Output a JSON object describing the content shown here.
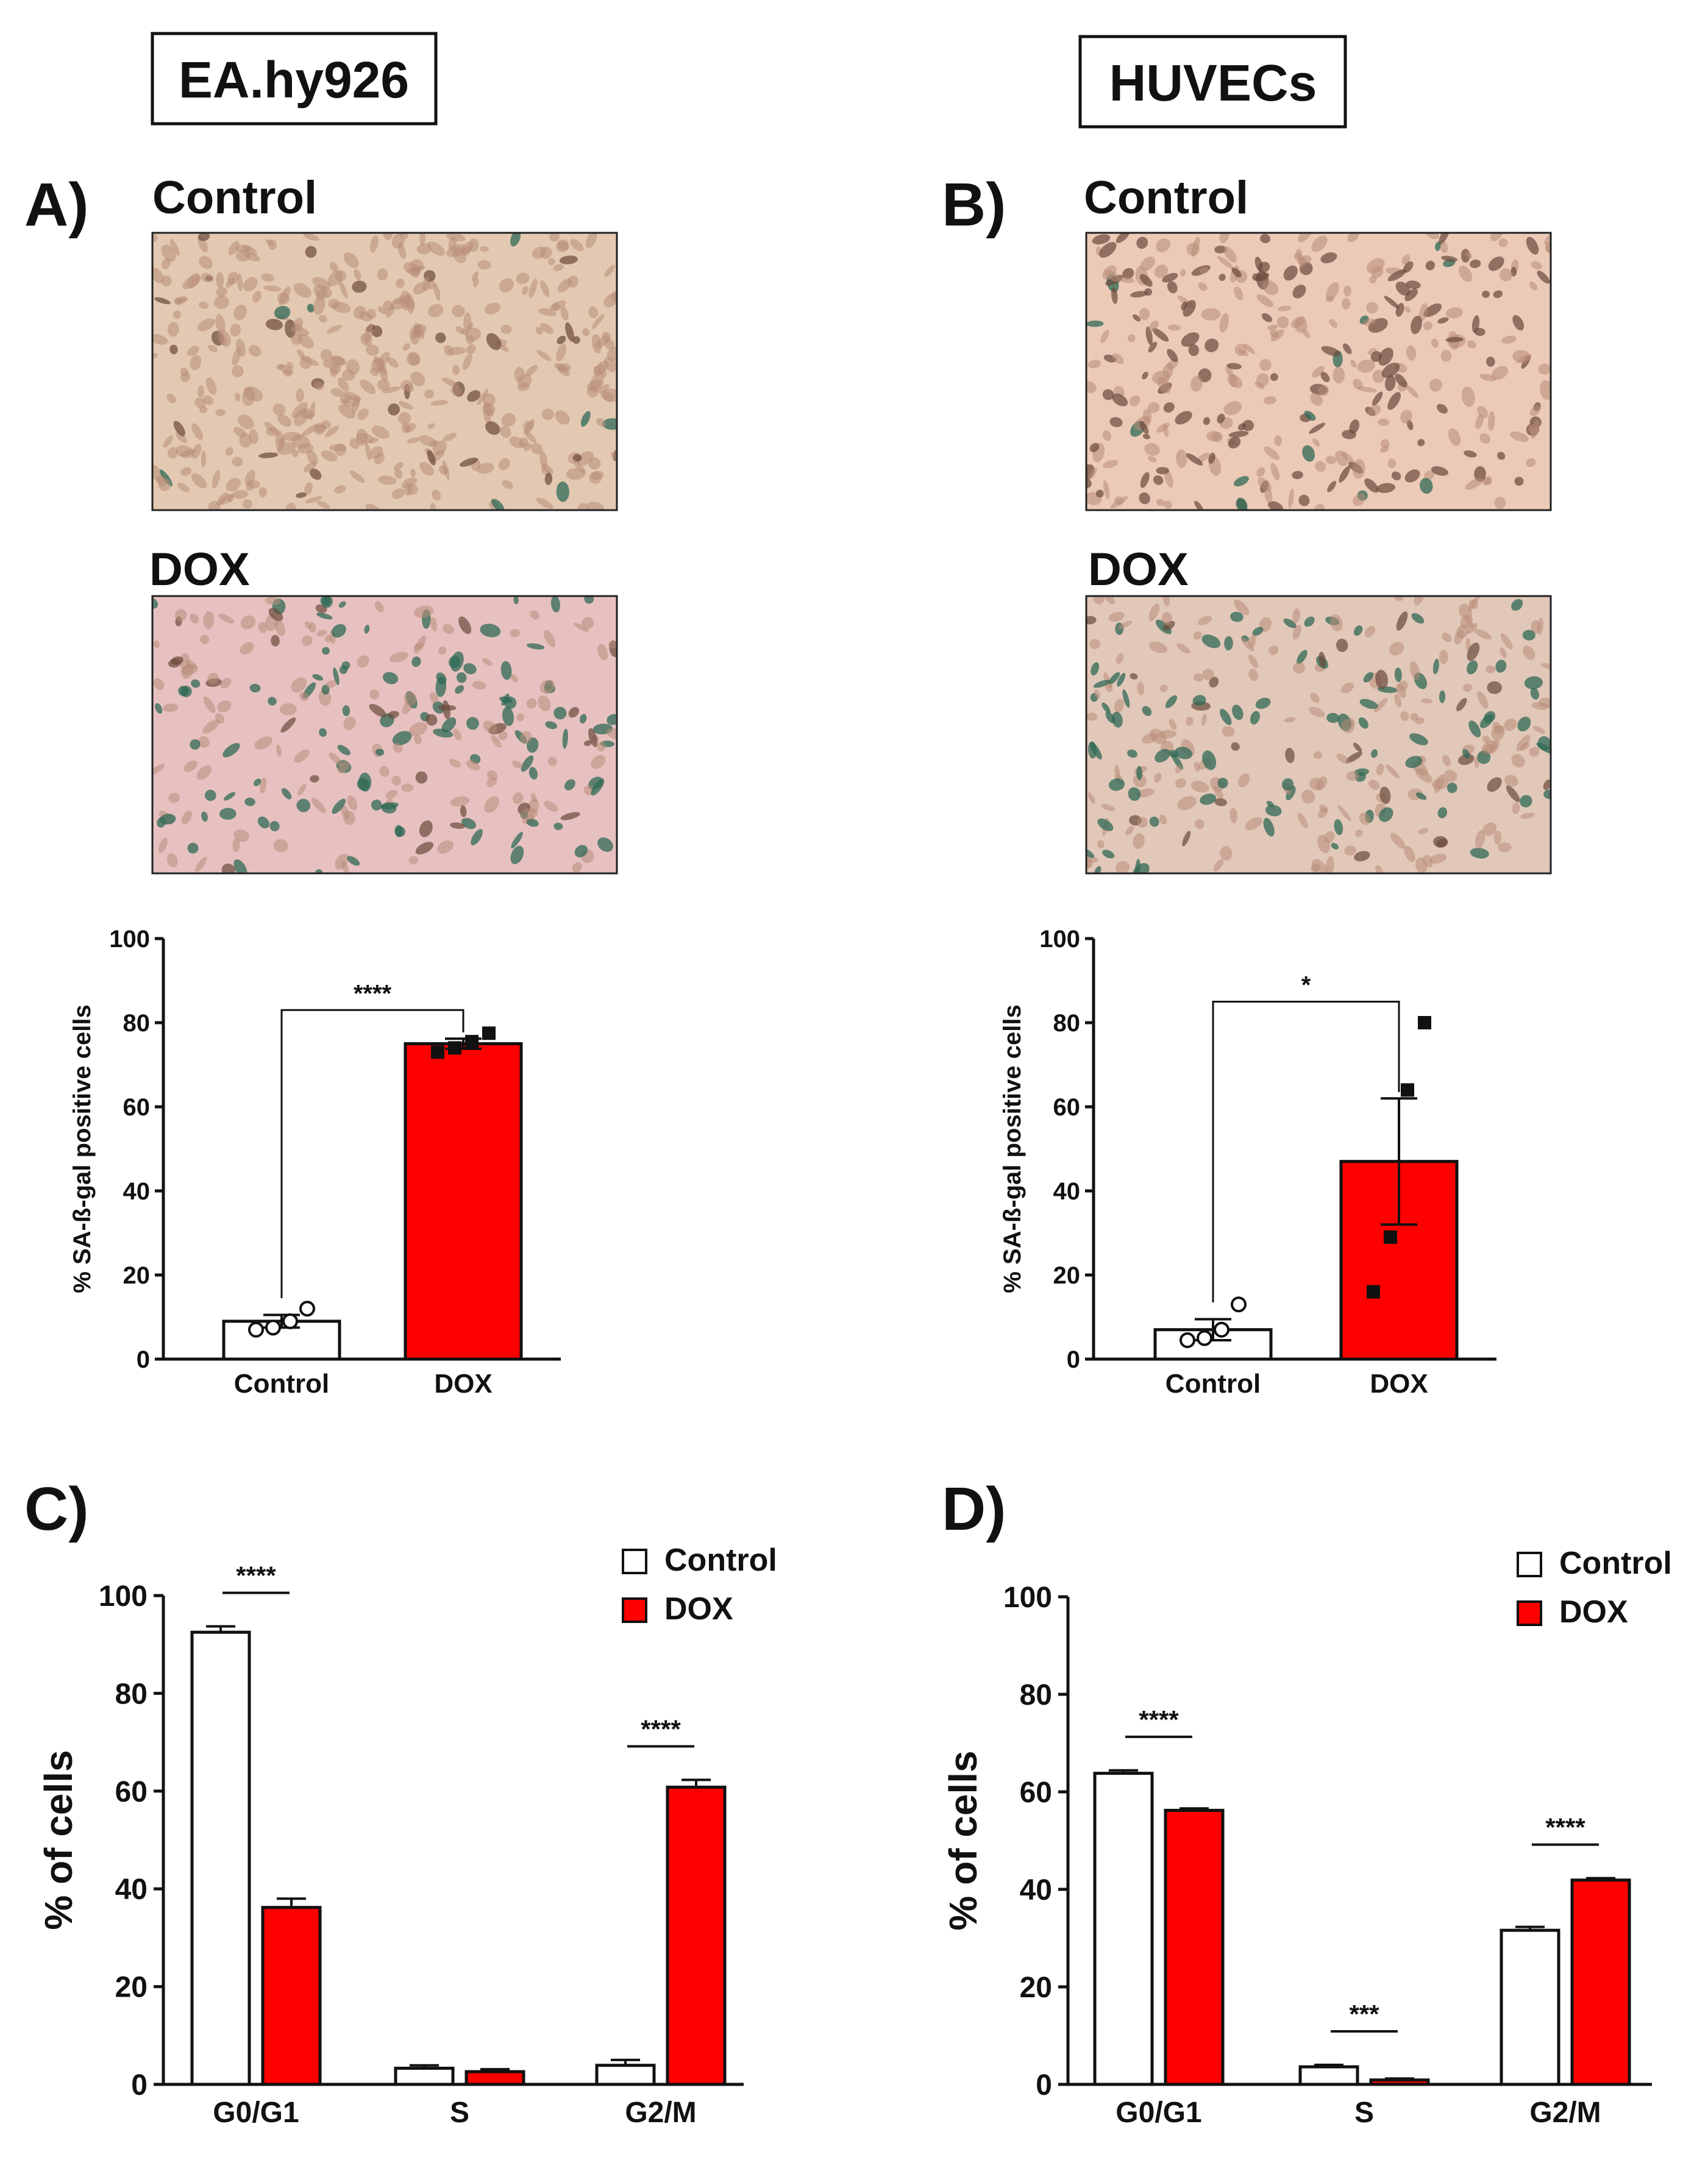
{
  "header": {
    "left_cell_line": "EA.hy926",
    "right_cell_line": "HUVECs"
  },
  "panels": {
    "a_label": "A)",
    "b_label": "B)",
    "c_label": "C)",
    "d_label": "D)",
    "control_label": "Control",
    "dox_label": "DOX"
  },
  "colors": {
    "control_fill": "#ffffff",
    "dox_fill": "#ff0000",
    "ink": "#111111",
    "ea_control_bg": "#e3c9b2",
    "ea_dox_bg": "#e7c1c0",
    "hu_control_bg": "#eccab8",
    "hu_dox_bg": "#e2c8b9",
    "cell_light": "#b88d78",
    "cell_green": "#2f6a55",
    "cell_dark": "#6b4a3c"
  },
  "chart_data": [
    {
      "id": "A",
      "type": "bar",
      "title": "",
      "ylabel": "% SA-ß-gal positive cells",
      "xlabel": "",
      "categories": [
        "Control",
        "DOX"
      ],
      "values": [
        9,
        75
      ],
      "errors": [
        1.5,
        1.2
      ],
      "points": [
        [
          7,
          7.5,
          9,
          12
        ],
        [
          73,
          74,
          75.5,
          77.5
        ]
      ],
      "ylim": [
        0,
        100
      ],
      "yticks": [
        0,
        20,
        40,
        60,
        80,
        100
      ],
      "significance": [
        {
          "from": "Control",
          "to": "DOX",
          "label": "****"
        }
      ]
    },
    {
      "id": "B",
      "type": "bar",
      "title": "",
      "ylabel": "% SA-ß-gal positive cells",
      "xlabel": "",
      "categories": [
        "Control",
        "DOX"
      ],
      "values": [
        7,
        47
      ],
      "errors": [
        2.5,
        15
      ],
      "points": [
        [
          4.5,
          5,
          7,
          13
        ],
        [
          16,
          29,
          64,
          80
        ]
      ],
      "ylim": [
        0,
        100
      ],
      "yticks": [
        0,
        20,
        40,
        60,
        80,
        100
      ],
      "significance": [
        {
          "from": "Control",
          "to": "DOX",
          "label": "*"
        }
      ]
    },
    {
      "id": "C",
      "type": "bar",
      "title": "",
      "ylabel": "% of cells",
      "xlabel": "",
      "categories": [
        "G0/G1",
        "S",
        "G2/M"
      ],
      "series": [
        {
          "name": "Control",
          "values": [
            92.5,
            3.3,
            3.9
          ],
          "errors": [
            1.2,
            0.6,
            1.1
          ]
        },
        {
          "name": "DOX",
          "values": [
            36.2,
            2.6,
            60.8
          ],
          "errors": [
            1.8,
            0.5,
            1.5
          ]
        }
      ],
      "ylim": [
        0,
        100
      ],
      "yticks": [
        0,
        20,
        40,
        60,
        80,
        100
      ],
      "legend": [
        "Control",
        "DOX"
      ],
      "legend_position": "top-right",
      "significance": [
        {
          "category": "G0/G1",
          "label": "****"
        },
        {
          "category": "G2/M",
          "label": "****"
        }
      ]
    },
    {
      "id": "D",
      "type": "bar",
      "title": "",
      "ylabel": "% of cells",
      "xlabel": "",
      "categories": [
        "G0/G1",
        "S",
        "G2/M"
      ],
      "series": [
        {
          "name": "Control",
          "values": [
            63.8,
            3.6,
            31.6
          ],
          "errors": [
            0.6,
            0.4,
            0.7
          ]
        },
        {
          "name": "DOX",
          "values": [
            56.2,
            0.9,
            41.9
          ],
          "errors": [
            0.4,
            0.3,
            0.4
          ]
        }
      ],
      "ylim": [
        0,
        100
      ],
      "yticks": [
        0,
        20,
        40,
        60,
        80,
        100
      ],
      "legend": [
        "Control",
        "DOX"
      ],
      "legend_position": "top-right",
      "significance": [
        {
          "category": "G0/G1",
          "label": "****"
        },
        {
          "category": "S",
          "label": "***"
        },
        {
          "category": "G2/M",
          "label": "****"
        }
      ]
    }
  ]
}
